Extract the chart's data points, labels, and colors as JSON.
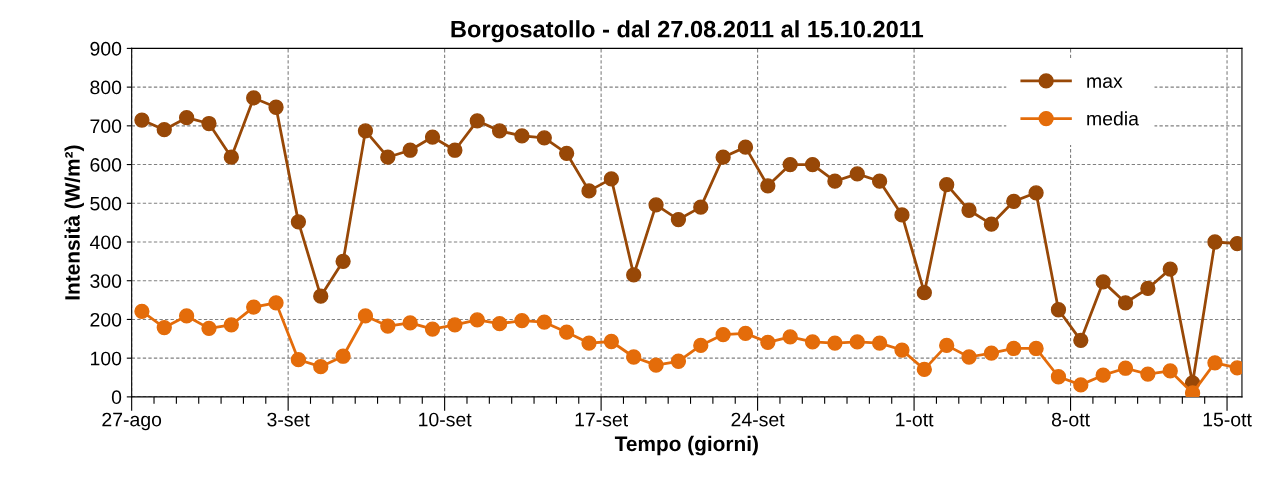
{
  "chart_data": {
    "type": "line",
    "title": "Borgosatollo - dal 27.08.2011 al 15.10.2011",
    "xlabel": "Tempo (giorni)",
    "ylabel": "Intensità (W/m²)",
    "x": [
      "2011-08-27T11:00",
      "2011-08-28T11:00",
      "2011-08-29T11:00",
      "2011-08-30T11:00",
      "2011-08-31T11:00",
      "2011-09-01T11:00",
      "2011-09-02T11:00",
      "2011-09-03T11:00",
      "2011-09-04T11:00",
      "2011-09-05T11:00",
      "2011-09-06T11:00",
      "2011-09-07T11:00",
      "2011-09-08T11:00",
      "2011-09-09T11:00",
      "2011-09-10T11:00",
      "2011-09-11T11:00",
      "2011-09-12T11:00",
      "2011-09-13T11:00",
      "2011-09-14T11:00",
      "2011-09-15T11:00",
      "2011-09-16T11:00",
      "2011-09-17T11:00",
      "2011-09-18T11:00",
      "2011-09-19T11:00",
      "2011-09-20T11:00",
      "2011-09-21T11:00",
      "2011-09-22T11:00",
      "2011-09-23T11:00",
      "2011-09-24T11:00",
      "2011-09-25T11:00",
      "2011-09-26T11:00",
      "2011-09-27T11:00",
      "2011-09-28T11:00",
      "2011-09-29T11:00",
      "2011-09-30T11:00",
      "2011-10-01T11:00",
      "2011-10-02T11:00",
      "2011-10-03T11:00",
      "2011-10-04T11:00",
      "2011-10-05T11:00",
      "2011-10-06T11:00",
      "2011-10-07T11:00",
      "2011-10-08T11:00",
      "2011-10-09T11:00",
      "2011-10-10T11:00",
      "2011-10-11T11:00",
      "2011-10-12T11:00",
      "2011-10-13T11:00",
      "2011-10-14T11:00",
      "2011-10-15T11:00"
    ],
    "series": [
      {
        "name": "max",
        "color": "#984807",
        "values": [
          715,
          690,
          721,
          706,
          619,
          772,
          748,
          452,
          260,
          350,
          687,
          619,
          637,
          671,
          637,
          713,
          687,
          674,
          669,
          629,
          532,
          563,
          315,
          496,
          458,
          490,
          619,
          645,
          545,
          600,
          600,
          557,
          576,
          557,
          470,
          269,
          548,
          482,
          446,
          505,
          527,
          225,
          146,
          297,
          243,
          280,
          330,
          36,
          400,
          396
        ]
      },
      {
        "name": "media",
        "color": "#e46c0a",
        "values": [
          221,
          179,
          209,
          177,
          186,
          232,
          243,
          96,
          78,
          105,
          209,
          183,
          191,
          175,
          186,
          199,
          189,
          197,
          193,
          167,
          139,
          143,
          103,
          82,
          92,
          133,
          161,
          164,
          141,
          155,
          142,
          139,
          142,
          139,
          121,
          71,
          133,
          103,
          113,
          125,
          125,
          52,
          31,
          56,
          74,
          59,
          67,
          10,
          88,
          75
        ]
      }
    ],
    "xlim": [
      "2011-08-27",
      "2011-10-15T16:00"
    ],
    "xticks": [
      {
        "value": "2011-08-27",
        "label": "27-ago"
      },
      {
        "value": "2011-08-28",
        "label": null
      },
      {
        "value": "2011-08-29",
        "label": null
      },
      {
        "value": "2011-08-30",
        "label": null
      },
      {
        "value": "2011-08-31",
        "label": null
      },
      {
        "value": "2011-09-01",
        "label": null
      },
      {
        "value": "2011-09-02",
        "label": null
      },
      {
        "value": "2011-09-03",
        "label": "3-set"
      },
      {
        "value": "2011-09-04",
        "label": null
      },
      {
        "value": "2011-09-05",
        "label": null
      },
      {
        "value": "2011-09-06",
        "label": null
      },
      {
        "value": "2011-09-07",
        "label": null
      },
      {
        "value": "2011-09-08",
        "label": null
      },
      {
        "value": "2011-09-09",
        "label": null
      },
      {
        "value": "2011-09-10",
        "label": "10-set"
      },
      {
        "value": "2011-09-11",
        "label": null
      },
      {
        "value": "2011-09-12",
        "label": null
      },
      {
        "value": "2011-09-13",
        "label": null
      },
      {
        "value": "2011-09-14",
        "label": null
      },
      {
        "value": "2011-09-15",
        "label": null
      },
      {
        "value": "2011-09-16",
        "label": null
      },
      {
        "value": "2011-09-17",
        "label": "17-set"
      },
      {
        "value": "2011-09-18",
        "label": null
      },
      {
        "value": "2011-09-19",
        "label": null
      },
      {
        "value": "2011-09-20",
        "label": null
      },
      {
        "value": "2011-09-21",
        "label": null
      },
      {
        "value": "2011-09-22",
        "label": null
      },
      {
        "value": "2011-09-23",
        "label": null
      },
      {
        "value": "2011-09-24",
        "label": "24-set"
      },
      {
        "value": "2011-09-25",
        "label": null
      },
      {
        "value": "2011-09-26",
        "label": null
      },
      {
        "value": "2011-09-27",
        "label": null
      },
      {
        "value": "2011-09-28",
        "label": null
      },
      {
        "value": "2011-09-29",
        "label": null
      },
      {
        "value": "2011-09-30",
        "label": null
      },
      {
        "value": "2011-10-01",
        "label": "1-ott"
      },
      {
        "value": "2011-10-02",
        "label": null
      },
      {
        "value": "2011-10-03",
        "label": null
      },
      {
        "value": "2011-10-04",
        "label": null
      },
      {
        "value": "2011-10-05",
        "label": null
      },
      {
        "value": "2011-10-06",
        "label": null
      },
      {
        "value": "2011-10-07",
        "label": null
      },
      {
        "value": "2011-10-08",
        "label": "8-ott"
      },
      {
        "value": "2011-10-09",
        "label": null
      },
      {
        "value": "2011-10-10",
        "label": null
      },
      {
        "value": "2011-10-11",
        "label": null
      },
      {
        "value": "2011-10-12",
        "label": null
      },
      {
        "value": "2011-10-13",
        "label": null
      },
      {
        "value": "2011-10-14",
        "label": null
      },
      {
        "value": "2011-10-15",
        "label": "15-ott"
      }
    ],
    "ylim": [
      0,
      900
    ],
    "yticks": [
      0,
      100,
      200,
      300,
      400,
      500,
      600,
      700,
      800,
      900
    ],
    "grid": true,
    "legend": "top right",
    "marker": "circle",
    "line_style": "solid"
  }
}
